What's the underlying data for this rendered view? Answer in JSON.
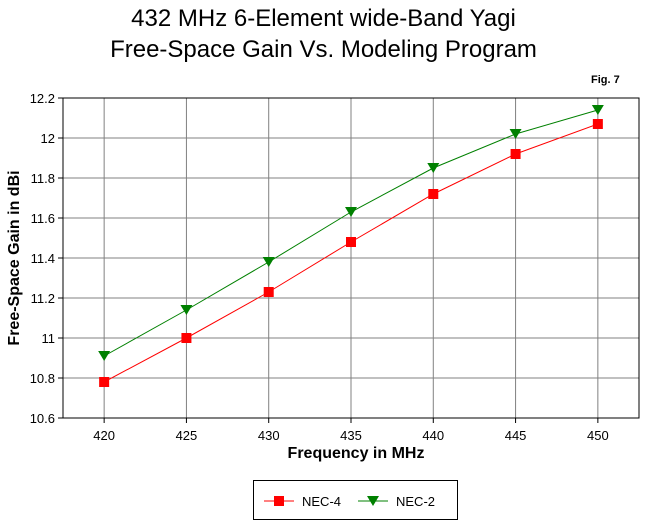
{
  "chart_data": {
    "type": "line",
    "title": "432 MHz 6-Element wide-Band Yagi",
    "subtitle": "Free-Space Gain Vs. Modeling Program",
    "annotation": "Fig. 7",
    "xlabel": "Frequency in MHz",
    "ylabel": "Free-Space Gain in dBi",
    "x": [
      420,
      425,
      430,
      435,
      440,
      445,
      450
    ],
    "xlim": [
      417.5,
      452.5
    ],
    "ylim": [
      10.6,
      12.2
    ],
    "x_ticks": [
      "420",
      "425",
      "430",
      "435",
      "440",
      "445",
      "450"
    ],
    "y_ticks": [
      "10.6",
      "10.8",
      "11",
      "11.2",
      "11.4",
      "11.6",
      "11.8",
      "12",
      "12.2"
    ],
    "grid": true,
    "legend_position": "bottom-center",
    "series": [
      {
        "name": "NEC-4",
        "color": "#ff0000",
        "marker": "square",
        "values": [
          10.78,
          11.0,
          11.23,
          11.48,
          11.72,
          11.92,
          12.07
        ]
      },
      {
        "name": "NEC-2",
        "color": "#008000",
        "marker": "triangle-down",
        "values": [
          10.91,
          11.14,
          11.38,
          11.63,
          11.85,
          12.02,
          12.14
        ]
      }
    ]
  }
}
